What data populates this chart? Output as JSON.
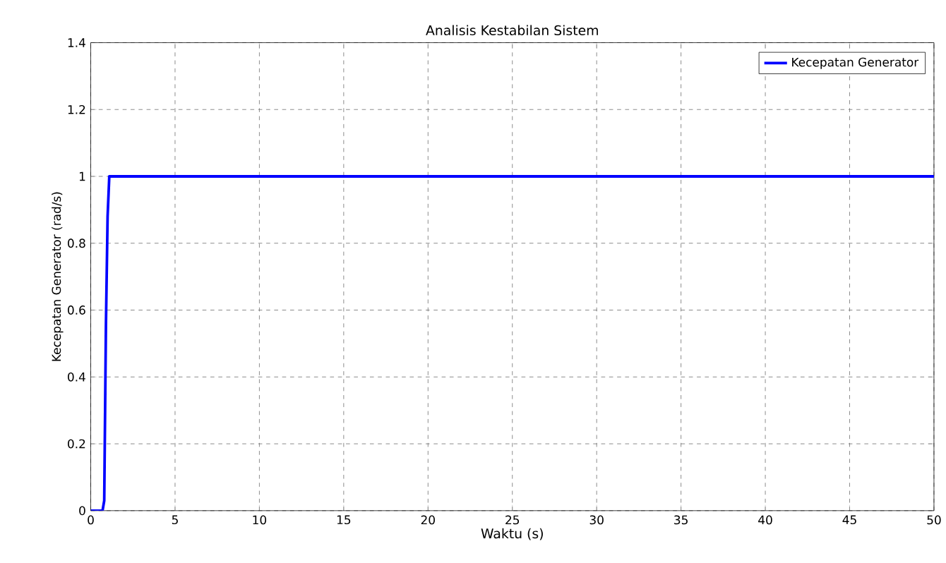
{
  "chart_data": {
    "type": "line",
    "title": "Analisis Kestabilan Sistem",
    "xlabel": "Waktu (s)",
    "ylabel": "Kecepatan Generator (rad/s)",
    "x": [
      0,
      0.7,
      0.8,
      0.9,
      1.0,
      1.1,
      50
    ],
    "series": [
      {
        "name": "Kecepatan Generator",
        "color": "#0000ff",
        "values": [
          0,
          0,
          0.03,
          0.55,
          0.88,
          1.0,
          1.0
        ]
      }
    ],
    "xlim": [
      0,
      50
    ],
    "ylim": [
      0,
      1.4
    ],
    "xticks": [
      0,
      5,
      10,
      15,
      20,
      25,
      30,
      35,
      40,
      45,
      50
    ],
    "yticks": [
      0,
      0.2,
      0.4,
      0.6,
      0.8,
      1,
      1.2,
      1.4
    ],
    "grid": true,
    "legend": "top right",
    "marker": "none",
    "line_style": "solid"
  }
}
